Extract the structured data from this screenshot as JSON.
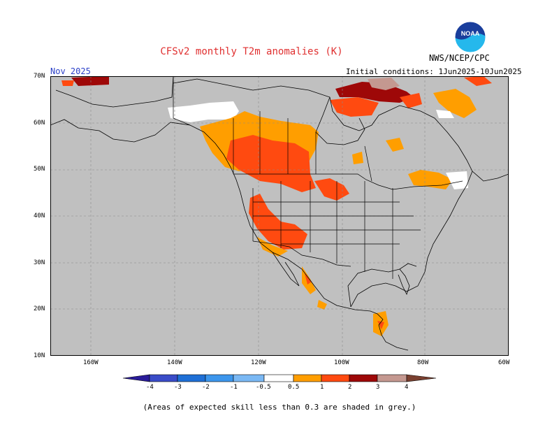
{
  "header": {
    "title": "CFSv2 monthly T2m anomalies (K)",
    "org": "NWS/NCEP/CPC",
    "month": "Nov 2025",
    "initial_conditions": "Initial conditions: 1Jun2025-10Jun2025"
  },
  "logo": {
    "text": "NOAA",
    "icon": "noaa-logo"
  },
  "axes": {
    "lat_labels": [
      "70N",
      "60N",
      "50N",
      "40N",
      "30N",
      "20N",
      "10N"
    ],
    "lon_labels": [
      "160W",
      "140W",
      "120W",
      "100W",
      "80W",
      "60W"
    ]
  },
  "colorbar": {
    "labels": [
      "-4",
      "-3",
      "-2",
      "-1",
      "-0.5",
      "0.5",
      "1",
      "2",
      "3",
      "4"
    ],
    "colors": [
      "#2a1c9a",
      "#3a4cc8",
      "#1e6fd6",
      "#3c96ec",
      "#7ab8f4",
      "#ffffff",
      "#ff9e00",
      "#ff4a10",
      "#d81f10",
      "#9e0808",
      "#c49890",
      "#7a4030"
    ]
  },
  "footnote": "(Areas of expected skill less than 0.3 are shaded in grey.)",
  "colors": {
    "grey": "#c0c0c0",
    "orange": "#ff9e00",
    "red": "#ff4a10",
    "crimson": "#d81f10",
    "darkred": "#9e0808",
    "pink": "#c49890",
    "white": "#ffffff"
  }
}
